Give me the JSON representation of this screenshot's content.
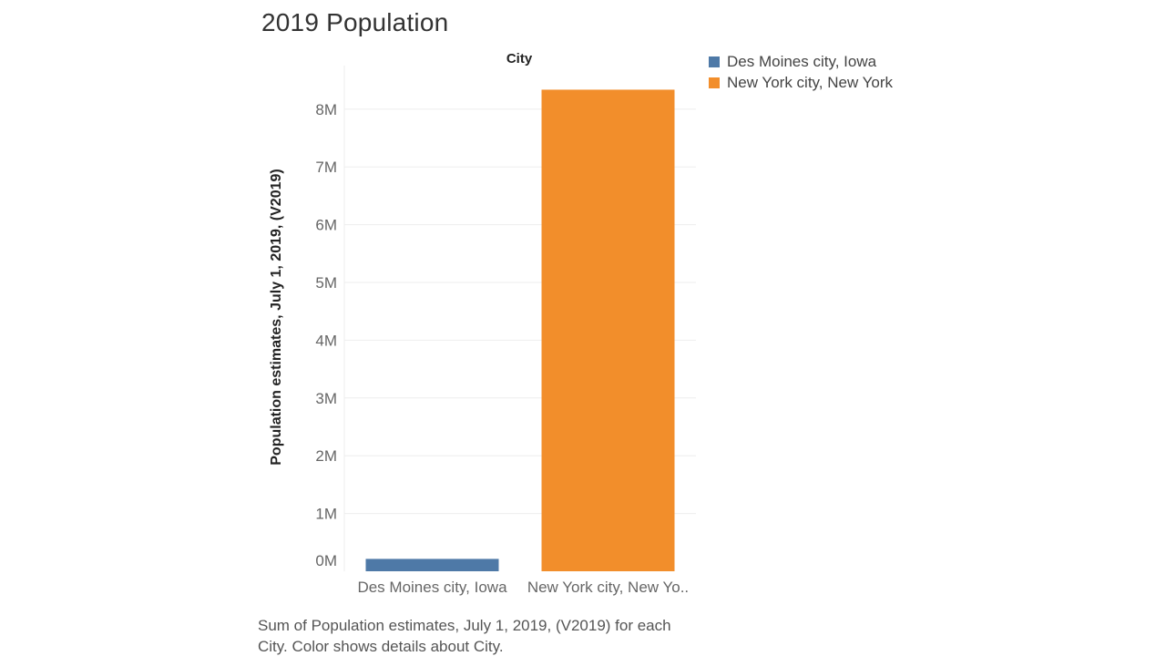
{
  "chart_data": {
    "type": "bar",
    "title": "2019 Population",
    "header_label": "City",
    "ylabel": "Population estimates, July 1, 2019,  (V2019)",
    "xlabel": "",
    "categories": [
      "Des Moines city, Iowa",
      "New York city, New York"
    ],
    "category_tick_labels": [
      "Des Moines city, Iowa",
      "New York city, New Yo.."
    ],
    "values": [
      214237,
      8336817
    ],
    "colors": [
      "#4e79a7",
      "#f28e2b"
    ],
    "ylim": [
      0,
      8500000
    ],
    "yticks": [
      0,
      1000000,
      2000000,
      3000000,
      4000000,
      5000000,
      6000000,
      7000000,
      8000000
    ],
    "ytick_labels": [
      "0M",
      "1M",
      "2M",
      "3M",
      "4M",
      "5M",
      "6M",
      "7M",
      "8M"
    ],
    "grid": true,
    "legend_placement": "right",
    "legend": [
      {
        "label": "Des Moines city, Iowa",
        "color": "#4e79a7"
      },
      {
        "label": "New York city, New York",
        "color": "#f28e2b"
      }
    ],
    "caption_lines": [
      "Sum of Population estimates, July 1, 2019,  (V2019) for each",
      "City.  Color shows details about City."
    ]
  }
}
